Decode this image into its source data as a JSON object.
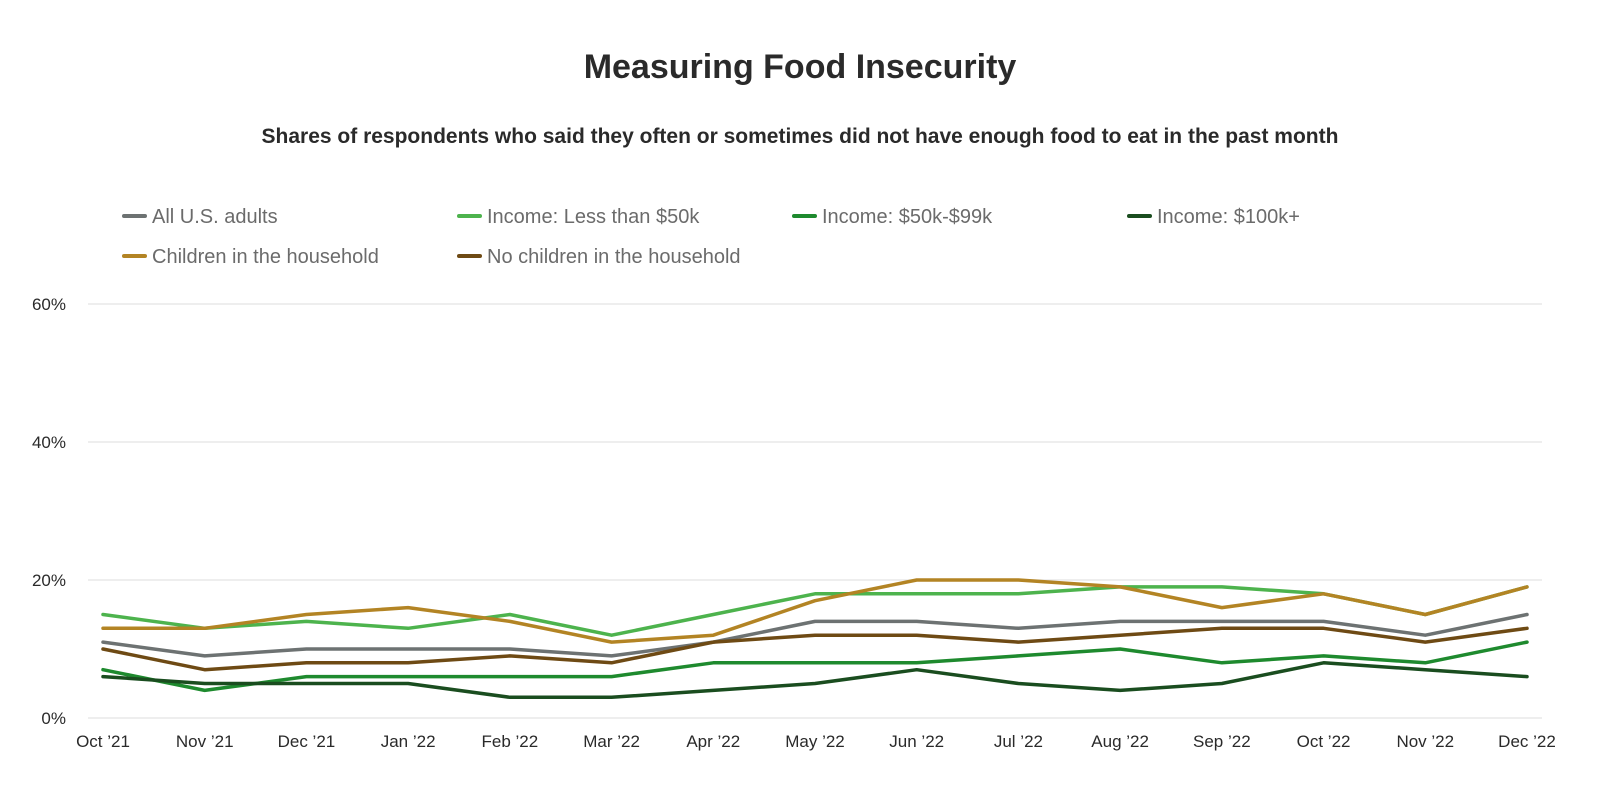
{
  "chart_data": {
    "type": "line",
    "title": "Measuring Food Insecurity",
    "subtitle": "Shares of respondents who said they often or sometimes did not have enough food to eat in the past month",
    "xlabel": "",
    "ylabel": "",
    "ylim": [
      0,
      60
    ],
    "yticks": [
      0,
      20,
      40,
      60
    ],
    "ytick_labels": [
      "0%",
      "20%",
      "40%",
      "60%"
    ],
    "grid": true,
    "legend_position": "top",
    "categories": [
      "Oct ’21",
      "Nov ’21",
      "Dec ’21",
      "Jan ’22",
      "Feb ’22",
      "Mar ’22",
      "Apr ’22",
      "May ’22",
      "Jun ’22",
      "Jul ’22",
      "Aug ’22",
      "Sep ’22",
      "Oct ’22",
      "Nov ’22",
      "Dec ’22"
    ],
    "series": [
      {
        "name": "All U.S. adults",
        "color": "#6d7272",
        "values": [
          11,
          9,
          10,
          10,
          10,
          9,
          11,
          14,
          14,
          13,
          14,
          14,
          14,
          12,
          15
        ]
      },
      {
        "name": "Income: Less than $50k",
        "color": "#4db34d",
        "values": [
          15,
          13,
          14,
          13,
          15,
          12,
          15,
          18,
          18,
          18,
          19,
          19,
          18,
          15,
          19
        ]
      },
      {
        "name": "Income: $50k-$99k",
        "color": "#1e8a2e",
        "values": [
          7,
          4,
          6,
          6,
          6,
          6,
          8,
          8,
          8,
          9,
          10,
          8,
          9,
          8,
          11
        ]
      },
      {
        "name": "Income: $100k+",
        "color": "#1a4d1f",
        "values": [
          6,
          5,
          5,
          5,
          3,
          3,
          4,
          5,
          7,
          5,
          4,
          5,
          8,
          7,
          6
        ]
      },
      {
        "name": "Children in the household",
        "color": "#b38424",
        "values": [
          13,
          13,
          15,
          16,
          14,
          11,
          12,
          17,
          20,
          20,
          19,
          16,
          18,
          15,
          19
        ]
      },
      {
        "name": "No children in the household",
        "color": "#6e4a14",
        "values": [
          10,
          7,
          8,
          8,
          9,
          8,
          11,
          12,
          12,
          11,
          12,
          13,
          13,
          11,
          13
        ]
      }
    ]
  }
}
